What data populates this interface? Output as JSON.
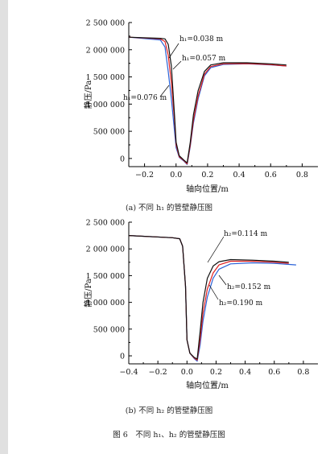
{
  "figure": {
    "title": "图 6　不同 h₁、h₂ 的管壁静压图"
  },
  "chart_data": [
    {
      "type": "line",
      "caption": "(a) 不同 h₁ 的管壁静压图",
      "xlabel": "轴向位置/m",
      "ylabel": "静压/Pa",
      "xlim": [
        -0.3,
        0.9
      ],
      "ylim": [
        -150000,
        2500000
      ],
      "xticks": [
        -0.2,
        0.0,
        0.2,
        0.4,
        0.6,
        0.8
      ],
      "xtick_labels": [
        "−0.2",
        "0.0",
        "0.2",
        "0.4",
        "0.6",
        "0.8"
      ],
      "yticks": [
        0,
        500000,
        1000000,
        1500000,
        2000000,
        2500000
      ],
      "ytick_labels": [
        "0",
        "500 000",
        "1 000 000",
        "1 500 000",
        "2 000 000",
        "2 500 000"
      ],
      "series": [
        {
          "name": "h₁=0.038 m",
          "color": "#111111",
          "x": [
            -0.3,
            -0.1,
            -0.07,
            -0.05,
            -0.03,
            -0.01,
            0.0,
            0.02,
            0.05,
            0.07,
            0.09,
            0.11,
            0.14,
            0.18,
            0.22,
            0.3,
            0.45,
            0.6,
            0.7
          ],
          "y": [
            2230000,
            2210000,
            2200000,
            2100000,
            1700000,
            800000,
            300000,
            50000,
            -30000,
            -80000,
            300000,
            800000,
            1250000,
            1600000,
            1720000,
            1760000,
            1760000,
            1740000,
            1720000
          ]
        },
        {
          "name": "h₁=0.057 m",
          "color": "#e02020",
          "x": [
            -0.3,
            -0.1,
            -0.07,
            -0.05,
            -0.03,
            -0.01,
            0.0,
            0.02,
            0.05,
            0.07,
            0.09,
            0.11,
            0.14,
            0.18,
            0.22,
            0.3,
            0.45,
            0.6,
            0.7
          ],
          "y": [
            2230000,
            2200000,
            2150000,
            1900000,
            1400000,
            700000,
            250000,
            30000,
            -40000,
            -100000,
            250000,
            700000,
            1150000,
            1550000,
            1690000,
            1740000,
            1745000,
            1725000,
            1700000
          ]
        },
        {
          "name": "h₁=0.076 m",
          "color": "#2a62d8",
          "x": [
            -0.3,
            -0.1,
            -0.07,
            -0.05,
            -0.03,
            -0.01,
            0.0,
            0.02,
            0.05,
            0.07,
            0.09,
            0.11,
            0.14,
            0.18,
            0.22,
            0.3,
            0.45,
            0.6,
            0.7
          ],
          "y": [
            2230000,
            2180000,
            2050000,
            1600000,
            1100000,
            500000,
            200000,
            20000,
            -50000,
            -110000,
            220000,
            650000,
            1100000,
            1520000,
            1670000,
            1730000,
            1740000,
            1720000,
            1700000
          ]
        }
      ]
    },
    {
      "type": "line",
      "caption": "(b) 不同 h₂ 的管壁静压图",
      "xlabel": "轴向位置/m",
      "ylabel": "静压/Pa",
      "xlim": [
        -0.4,
        0.9
      ],
      "ylim": [
        -150000,
        2500000
      ],
      "xticks": [
        -0.4,
        -0.2,
        0.0,
        0.2,
        0.4,
        0.6,
        0.8
      ],
      "xtick_labels": [
        "−0.4",
        "−0.2",
        "0.0",
        "0.2",
        "0.4",
        "0.6",
        "0.8"
      ],
      "yticks": [
        0,
        500000,
        1000000,
        1500000,
        2000000,
        2500000
      ],
      "ytick_labels": [
        "0",
        "500 000",
        "1 000 000",
        "1 500 000",
        "2 000 000",
        "2 500 000"
      ],
      "series": [
        {
          "name": "h₂=0.114 m",
          "color": "#111111",
          "x": [
            -0.4,
            -0.1,
            -0.05,
            -0.03,
            -0.01,
            0.0,
            0.02,
            0.05,
            0.07,
            0.09,
            0.11,
            0.14,
            0.18,
            0.22,
            0.3,
            0.45,
            0.6,
            0.7
          ],
          "y": [
            2250000,
            2210000,
            2190000,
            2050000,
            1300000,
            300000,
            50000,
            -30000,
            -60000,
            450000,
            1000000,
            1450000,
            1680000,
            1760000,
            1800000,
            1790000,
            1770000,
            1750000
          ]
        },
        {
          "name": "h₂=0.152 m",
          "color": "#e02020",
          "x": [
            -0.4,
            -0.1,
            -0.05,
            -0.03,
            -0.01,
            0.0,
            0.02,
            0.05,
            0.07,
            0.09,
            0.11,
            0.14,
            0.18,
            0.22,
            0.3,
            0.45,
            0.6,
            0.7
          ],
          "y": [
            2250000,
            2210000,
            2190000,
            2050000,
            1300000,
            300000,
            50000,
            -40000,
            -80000,
            300000,
            800000,
            1250000,
            1550000,
            1700000,
            1770000,
            1770000,
            1750000,
            1730000
          ]
        },
        {
          "name": "h₂=0.190 m",
          "color": "#2a62d8",
          "x": [
            -0.4,
            -0.1,
            -0.05,
            -0.03,
            -0.01,
            0.0,
            0.02,
            0.05,
            0.07,
            0.09,
            0.11,
            0.14,
            0.18,
            0.22,
            0.3,
            0.45,
            0.6,
            0.75
          ],
          "y": [
            2250000,
            2210000,
            2190000,
            2050000,
            1300000,
            300000,
            50000,
            -50000,
            -100000,
            200000,
            650000,
            1100000,
            1450000,
            1620000,
            1720000,
            1740000,
            1730000,
            1700000
          ]
        }
      ]
    }
  ],
  "annotations": [
    {
      "chart": 0,
      "items": [
        {
          "series": 0,
          "text": "h₁=0.038 m"
        },
        {
          "series": 1,
          "text": "h₁=0.057 m"
        },
        {
          "series": 2,
          "text": "h₁=0.076 m"
        }
      ]
    },
    {
      "chart": 1,
      "items": [
        {
          "series": 0,
          "text": "h₂=0.114 m"
        },
        {
          "series": 1,
          "text": "h₂=0.152 m"
        },
        {
          "series": 2,
          "text": "h₂=0.190 m"
        }
      ]
    }
  ]
}
